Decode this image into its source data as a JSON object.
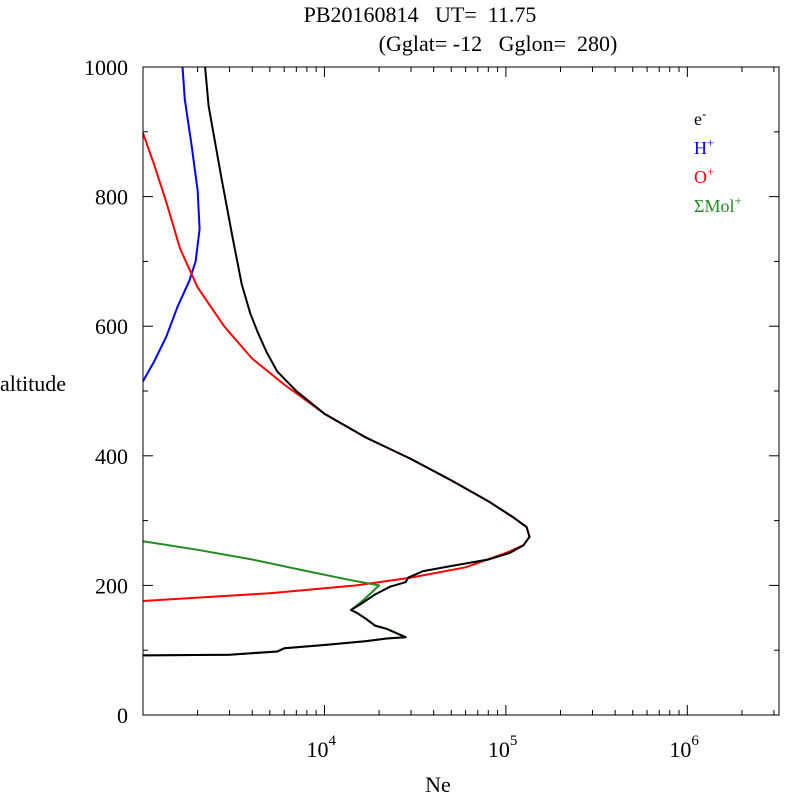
{
  "chart_data": {
    "type": "line",
    "title_line1": "PB20160814   UT=  11.75",
    "title_line2": "(Gglat= -12   Gglon=  280)",
    "xlabel": "Ne",
    "ylabel": "altitude",
    "xscale": "log",
    "xlim": [
      1000,
      3200000
    ],
    "ylim": [
      0,
      1000
    ],
    "x_tick_labels": [
      {
        "base": "10",
        "exp": "4",
        "value": 10000
      },
      {
        "base": "10",
        "exp": "5",
        "value": 100000
      },
      {
        "base": "10",
        "exp": "6",
        "value": 1000000
      }
    ],
    "y_tick_labels": [
      "0",
      "200",
      "400",
      "600",
      "800",
      "1000"
    ],
    "y_tick_values": [
      0,
      200,
      400,
      600,
      800,
      1000
    ],
    "legend_position": "top-right",
    "series": [
      {
        "name": "e",
        "sup": "-",
        "color": "#000000",
        "points": [
          [
            1000,
            92
          ],
          [
            3000,
            93
          ],
          [
            5500,
            98
          ],
          [
            6000,
            103
          ],
          [
            10000,
            108
          ],
          [
            17000,
            114
          ],
          [
            22000,
            118
          ],
          [
            28000,
            120
          ],
          [
            22000,
            133
          ],
          [
            19000,
            138
          ],
          [
            17000,
            148
          ],
          [
            15000,
            158
          ],
          [
            14000,
            162
          ],
          [
            16000,
            172
          ],
          [
            19000,
            186
          ],
          [
            23000,
            198
          ],
          [
            28000,
            205
          ],
          [
            29000,
            212
          ],
          [
            35000,
            222
          ],
          [
            50000,
            230
          ],
          [
            80000,
            240
          ],
          [
            105000,
            250
          ],
          [
            125000,
            262
          ],
          [
            135000,
            275
          ],
          [
            130000,
            290
          ],
          [
            110000,
            305
          ],
          [
            80000,
            330
          ],
          [
            50000,
            362
          ],
          [
            30000,
            395
          ],
          [
            17000,
            428
          ],
          [
            10000,
            465
          ],
          [
            7000,
            500
          ],
          [
            5500,
            530
          ],
          [
            4800,
            560
          ],
          [
            4300,
            590
          ],
          [
            3900,
            620
          ],
          [
            3500,
            665
          ],
          [
            3100,
            740
          ],
          [
            2700,
            830
          ],
          [
            2300,
            940
          ],
          [
            2200,
            1000
          ]
        ]
      },
      {
        "name": "H",
        "sup": "+",
        "color": "#0000ff",
        "points": [
          [
            1000,
            515
          ],
          [
            1150,
            545
          ],
          [
            1350,
            585
          ],
          [
            1550,
            630
          ],
          [
            1800,
            670
          ],
          [
            1950,
            700
          ],
          [
            2050,
            750
          ],
          [
            2000,
            810
          ],
          [
            1850,
            880
          ],
          [
            1700,
            950
          ],
          [
            1650,
            1000
          ]
        ]
      },
      {
        "name": "O",
        "sup": "+",
        "color": "#ff0000",
        "points": [
          [
            1000,
            176
          ],
          [
            5000,
            188
          ],
          [
            15000,
            200
          ],
          [
            30000,
            212
          ],
          [
            60000,
            228
          ],
          [
            100000,
            250
          ],
          [
            125000,
            262
          ],
          [
            135000,
            275
          ],
          [
            130000,
            290
          ],
          [
            110000,
            305
          ],
          [
            80000,
            330
          ],
          [
            50000,
            362
          ],
          [
            30000,
            395
          ],
          [
            17000,
            428
          ],
          [
            10000,
            465
          ],
          [
            6000,
            510
          ],
          [
            4000,
            550
          ],
          [
            2800,
            600
          ],
          [
            2000,
            660
          ],
          [
            1600,
            720
          ],
          [
            1350,
            790
          ],
          [
            1150,
            850
          ],
          [
            1000,
            898
          ]
        ]
      },
      {
        "name": "ΣMol",
        "sup": "+",
        "color": "#228b22",
        "points": [
          [
            1000,
            92
          ],
          [
            3000,
            93
          ],
          [
            5500,
            98
          ],
          [
            6000,
            103
          ],
          [
            10000,
            108
          ],
          [
            17000,
            114
          ],
          [
            22000,
            118
          ],
          [
            28000,
            120
          ],
          [
            22000,
            133
          ],
          [
            19000,
            138
          ],
          [
            17000,
            148
          ],
          [
            15000,
            158
          ],
          [
            14000,
            162
          ],
          [
            16000,
            175
          ],
          [
            18000,
            188
          ],
          [
            20000,
            200
          ],
          [
            14000,
            208
          ],
          [
            8000,
            222
          ],
          [
            4000,
            240
          ],
          [
            2000,
            255
          ],
          [
            1000,
            268
          ]
        ]
      }
    ]
  }
}
